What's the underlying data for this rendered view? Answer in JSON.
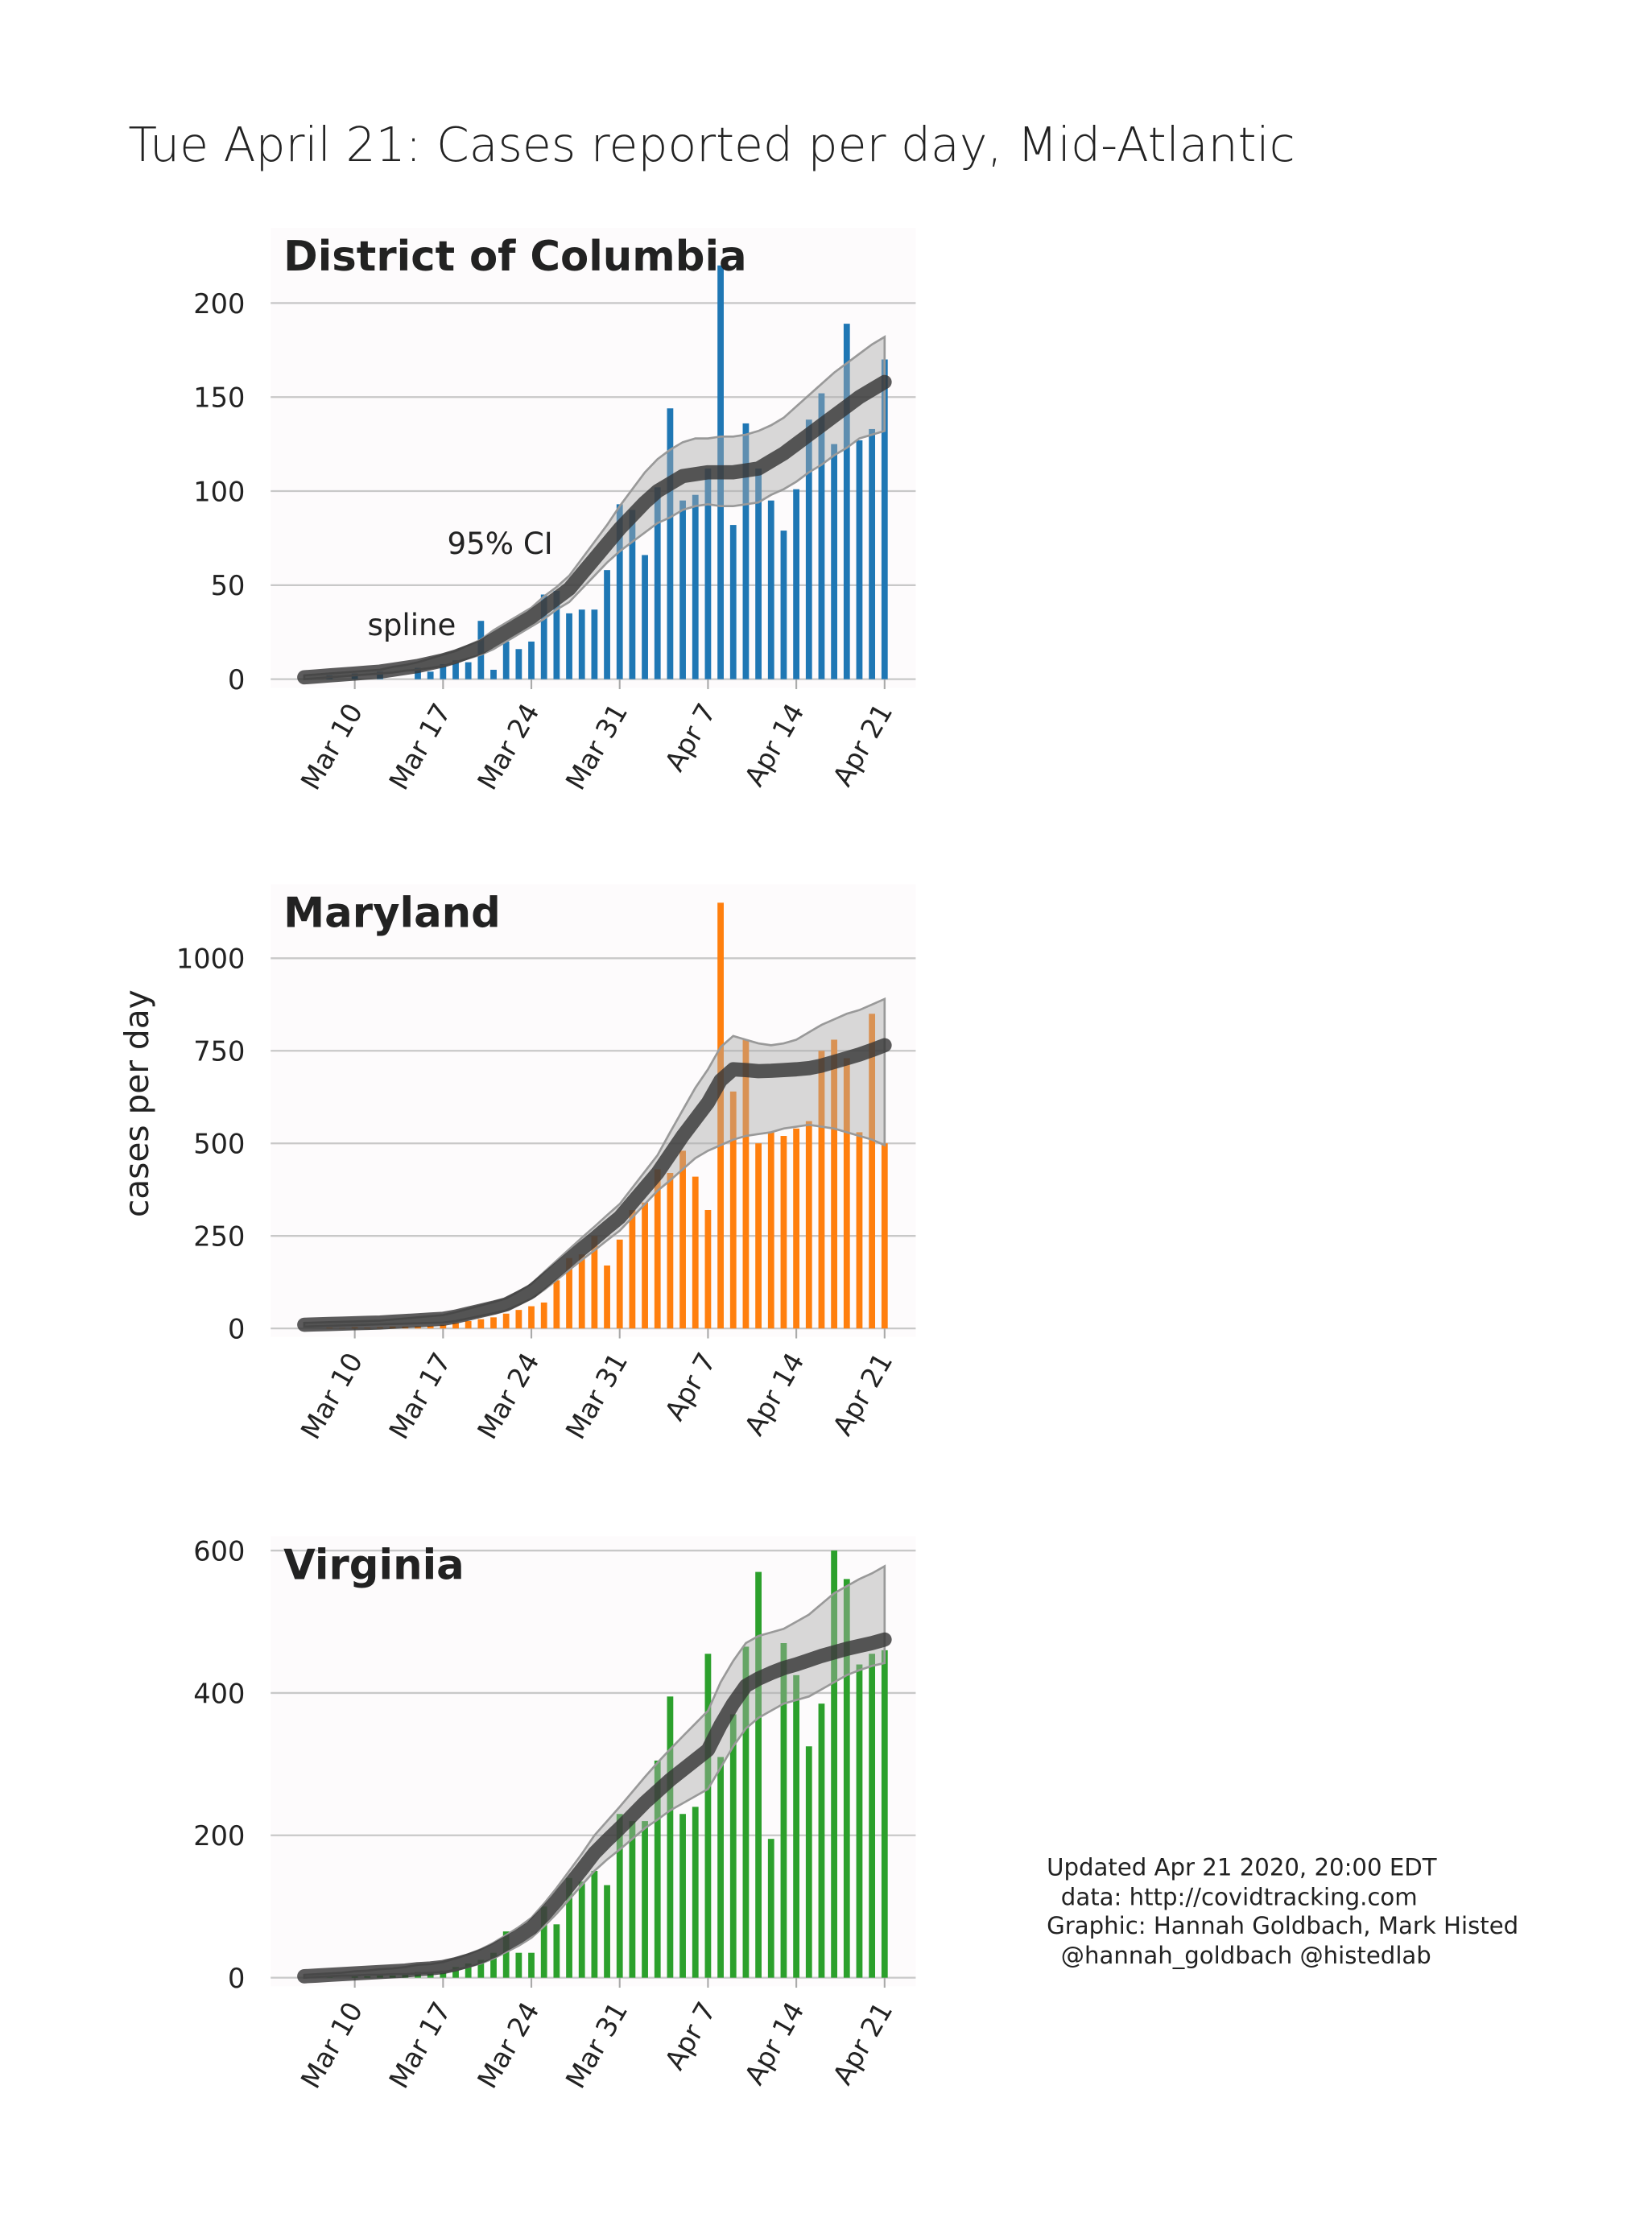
{
  "title": "Tue April 21: Cases reported per day, Mid-Atlantic",
  "ylabel": "cases per day",
  "footnote": [
    "Updated Apr 21 2020, 20:00 EDT",
    "data: http://covidtracking.com",
    "Graphic: Hannah Goldbach, Mark Histed",
    "@hannah_goldbach @histedlab"
  ],
  "chart_data": [
    {
      "type": "bar",
      "title": "District of Columbia",
      "color": "#1f77b4",
      "x": [
        "Mar 6",
        "Mar 7",
        "Mar 8",
        "Mar 9",
        "Mar 10",
        "Mar 11",
        "Mar 12",
        "Mar 13",
        "Mar 14",
        "Mar 15",
        "Mar 16",
        "Mar 17",
        "Mar 18",
        "Mar 19",
        "Mar 20",
        "Mar 21",
        "Mar 22",
        "Mar 23",
        "Mar 24",
        "Mar 25",
        "Mar 26",
        "Mar 27",
        "Mar 28",
        "Mar 29",
        "Mar 30",
        "Mar 31",
        "Apr 1",
        "Apr 2",
        "Apr 3",
        "Apr 4",
        "Apr 5",
        "Apr 6",
        "Apr 7",
        "Apr 8",
        "Apr 9",
        "Apr 10",
        "Apr 11",
        "Apr 12",
        "Apr 13",
        "Apr 14",
        "Apr 15",
        "Apr 16",
        "Apr 17",
        "Apr 18",
        "Apr 19",
        "Apr 20",
        "Apr 21"
      ],
      "values": [
        0,
        0,
        2,
        0,
        3,
        0,
        4,
        0,
        0,
        6,
        4,
        8,
        10,
        9,
        31,
        5,
        20,
        16,
        20,
        45,
        47,
        35,
        37,
        37,
        58,
        93,
        90,
        66,
        102,
        144,
        95,
        98,
        112,
        220,
        82,
        136,
        112,
        95,
        79,
        101,
        138,
        152,
        125,
        189,
        127,
        133,
        170
      ],
      "spline": [
        1,
        1.5,
        2,
        2.5,
        3,
        3.5,
        4,
        5,
        6,
        7,
        8.5,
        10,
        12,
        14.5,
        17,
        21,
        25,
        29,
        33,
        38,
        43,
        48,
        56,
        64,
        72,
        80,
        87,
        94,
        100,
        104,
        108,
        109,
        110,
        110,
        110,
        111,
        112,
        116,
        120,
        125,
        130,
        135,
        140,
        145,
        150,
        154,
        158
      ],
      "ci_lower": [
        0,
        0.5,
        1,
        1.5,
        2,
        2.5,
        3,
        3.5,
        4.5,
        5,
        6,
        7,
        9,
        11,
        13,
        16,
        20,
        24,
        28,
        32,
        37,
        41,
        48,
        55,
        62,
        68,
        73,
        78,
        83,
        86,
        90,
        92,
        93,
        92,
        92,
        93,
        94,
        98,
        101,
        105,
        110,
        114,
        119,
        123,
        128,
        130,
        132
      ],
      "ci_upper": [
        2,
        2.5,
        3,
        3.5,
        4,
        4.5,
        5,
        6.5,
        7.5,
        9,
        11,
        13,
        15,
        18,
        21,
        26,
        30,
        34,
        38,
        44,
        49,
        55,
        64,
        73,
        82,
        92,
        101,
        110,
        117,
        122,
        126,
        128,
        128,
        129,
        129,
        130,
        132,
        135,
        139,
        145,
        151,
        157,
        163,
        168,
        173,
        178,
        182
      ],
      "annotations": [
        "spline",
        "95% CI"
      ],
      "ylim": [
        0,
        240
      ],
      "yticks": [
        0,
        50,
        100,
        150,
        200
      ],
      "xticks": [
        "Mar 10",
        "Mar 17",
        "Mar 24",
        "Mar 31",
        "Apr 7",
        "Apr 14",
        "Apr 21"
      ],
      "grid": true
    },
    {
      "type": "bar",
      "title": "Maryland",
      "color": "#ff7f0e",
      "x": [
        "Mar 6",
        "Mar 7",
        "Mar 8",
        "Mar 9",
        "Mar 10",
        "Mar 11",
        "Mar 12",
        "Mar 13",
        "Mar 14",
        "Mar 15",
        "Mar 16",
        "Mar 17",
        "Mar 18",
        "Mar 19",
        "Mar 20",
        "Mar 21",
        "Mar 22",
        "Mar 23",
        "Mar 24",
        "Mar 25",
        "Mar 26",
        "Mar 27",
        "Mar 28",
        "Mar 29",
        "Mar 30",
        "Mar 31",
        "Apr 1",
        "Apr 2",
        "Apr 3",
        "Apr 4",
        "Apr 5",
        "Apr 6",
        "Apr 7",
        "Apr 8",
        "Apr 9",
        "Apr 10",
        "Apr 11",
        "Apr 12",
        "Apr 13",
        "Apr 14",
        "Apr 15",
        "Apr 16",
        "Apr 17",
        "Apr 18",
        "Apr 19",
        "Apr 20",
        "Apr 21"
      ],
      "values": [
        0,
        0,
        2,
        1,
        3,
        2,
        3,
        5,
        5,
        6,
        7,
        10,
        15,
        20,
        25,
        30,
        40,
        50,
        60,
        70,
        130,
        190,
        200,
        250,
        170,
        240,
        320,
        340,
        430,
        420,
        480,
        410,
        320,
        1150,
        640,
        780,
        500,
        530,
        520,
        540,
        560,
        750,
        780,
        730,
        530,
        850,
        500
      ],
      "spline": [
        10,
        11,
        12,
        13,
        14,
        15,
        16,
        18,
        20,
        22,
        24,
        26,
        32,
        40,
        48,
        56,
        65,
        82,
        100,
        128,
        157,
        186,
        215,
        243,
        272,
        300,
        340,
        380,
        420,
        470,
        520,
        565,
        610,
        670,
        700,
        698,
        695,
        696,
        698,
        700,
        703,
        710,
        720,
        730,
        740,
        752,
        765
      ],
      "ci_lower": [
        5,
        6,
        7,
        8,
        9,
        10,
        11,
        12,
        13,
        14,
        15,
        16,
        20,
        27,
        34,
        41,
        49,
        64,
        80,
        104,
        131,
        158,
        185,
        211,
        238,
        264,
        300,
        336,
        372,
        400,
        430,
        460,
        480,
        495,
        510,
        520,
        525,
        530,
        540,
        545,
        550,
        545,
        540,
        530,
        520,
        510,
        495
      ],
      "ci_upper": [
        15,
        16,
        17,
        18,
        19,
        20,
        21,
        24,
        27,
        30,
        33,
        36,
        44,
        53,
        62,
        71,
        81,
        100,
        120,
        152,
        183,
        214,
        245,
        275,
        306,
        336,
        380,
        424,
        468,
        530,
        590,
        650,
        700,
        760,
        790,
        780,
        770,
        765,
        770,
        780,
        800,
        820,
        835,
        850,
        860,
        875,
        890
      ],
      "ylim": [
        0,
        1200
      ],
      "yticks": [
        0,
        250,
        500,
        750,
        1000
      ],
      "xticks": [
        "Mar 10",
        "Mar 17",
        "Mar 24",
        "Mar 31",
        "Apr 7",
        "Apr 14",
        "Apr 21"
      ],
      "grid": true
    },
    {
      "type": "bar",
      "title": "Virginia",
      "color": "#2ca02c",
      "x": [
        "Mar 6",
        "Mar 7",
        "Mar 8",
        "Mar 9",
        "Mar 10",
        "Mar 11",
        "Mar 12",
        "Mar 13",
        "Mar 14",
        "Mar 15",
        "Mar 16",
        "Mar 17",
        "Mar 18",
        "Mar 19",
        "Mar 20",
        "Mar 21",
        "Mar 22",
        "Mar 23",
        "Mar 24",
        "Mar 25",
        "Mar 26",
        "Mar 27",
        "Mar 28",
        "Mar 29",
        "Mar 30",
        "Mar 31",
        "Apr 1",
        "Apr 2",
        "Apr 3",
        "Apr 4",
        "Apr 5",
        "Apr 6",
        "Apr 7",
        "Apr 8",
        "Apr 9",
        "Apr 10",
        "Apr 11",
        "Apr 12",
        "Apr 13",
        "Apr 14",
        "Apr 15",
        "Apr 16",
        "Apr 17",
        "Apr 18",
        "Apr 19",
        "Apr 20",
        "Apr 21"
      ],
      "values": [
        0,
        0,
        2,
        0,
        3,
        2,
        5,
        3,
        5,
        8,
        8,
        10,
        15,
        20,
        25,
        35,
        65,
        35,
        35,
        100,
        75,
        140,
        135,
        150,
        130,
        230,
        220,
        220,
        305,
        395,
        230,
        240,
        455,
        310,
        370,
        465,
        570,
        195,
        470,
        425,
        325,
        385,
        600,
        560,
        440,
        455,
        460
      ],
      "spline": [
        2,
        3,
        4,
        5,
        6,
        7,
        8,
        9,
        10,
        12,
        13,
        15,
        19,
        24,
        30,
        38,
        48,
        58,
        70,
        88,
        108,
        130,
        152,
        175,
        193,
        210,
        228,
        246,
        262,
        278,
        292,
        306,
        320,
        355,
        385,
        410,
        420,
        428,
        435,
        440,
        446,
        452,
        457,
        462,
        466,
        470,
        475
      ],
      "ci_lower": [
        0,
        1,
        2,
        3,
        3,
        4,
        4,
        5,
        5,
        6,
        7,
        8,
        11,
        15,
        20,
        27,
        36,
        45,
        56,
        72,
        90,
        110,
        130,
        150,
        166,
        180,
        195,
        210,
        222,
        235,
        245,
        255,
        265,
        295,
        325,
        350,
        365,
        375,
        385,
        390,
        395,
        405,
        415,
        425,
        432,
        438,
        442
      ],
      "ci_upper": [
        4,
        5,
        6,
        7,
        9,
        10,
        12,
        13,
        15,
        18,
        19,
        22,
        27,
        33,
        40,
        49,
        60,
        71,
        84,
        104,
        126,
        150,
        174,
        200,
        220,
        240,
        261,
        282,
        302,
        321,
        339,
        357,
        375,
        415,
        445,
        470,
        480,
        485,
        490,
        500,
        510,
        525,
        540,
        550,
        560,
        568,
        578
      ],
      "ylim": [
        0,
        620
      ],
      "yticks": [
        0,
        200,
        400,
        600
      ],
      "xticks": [
        "Mar 10",
        "Mar 17",
        "Mar 24",
        "Mar 31",
        "Apr 7",
        "Apr 14",
        "Apr 21"
      ],
      "grid": true
    }
  ]
}
